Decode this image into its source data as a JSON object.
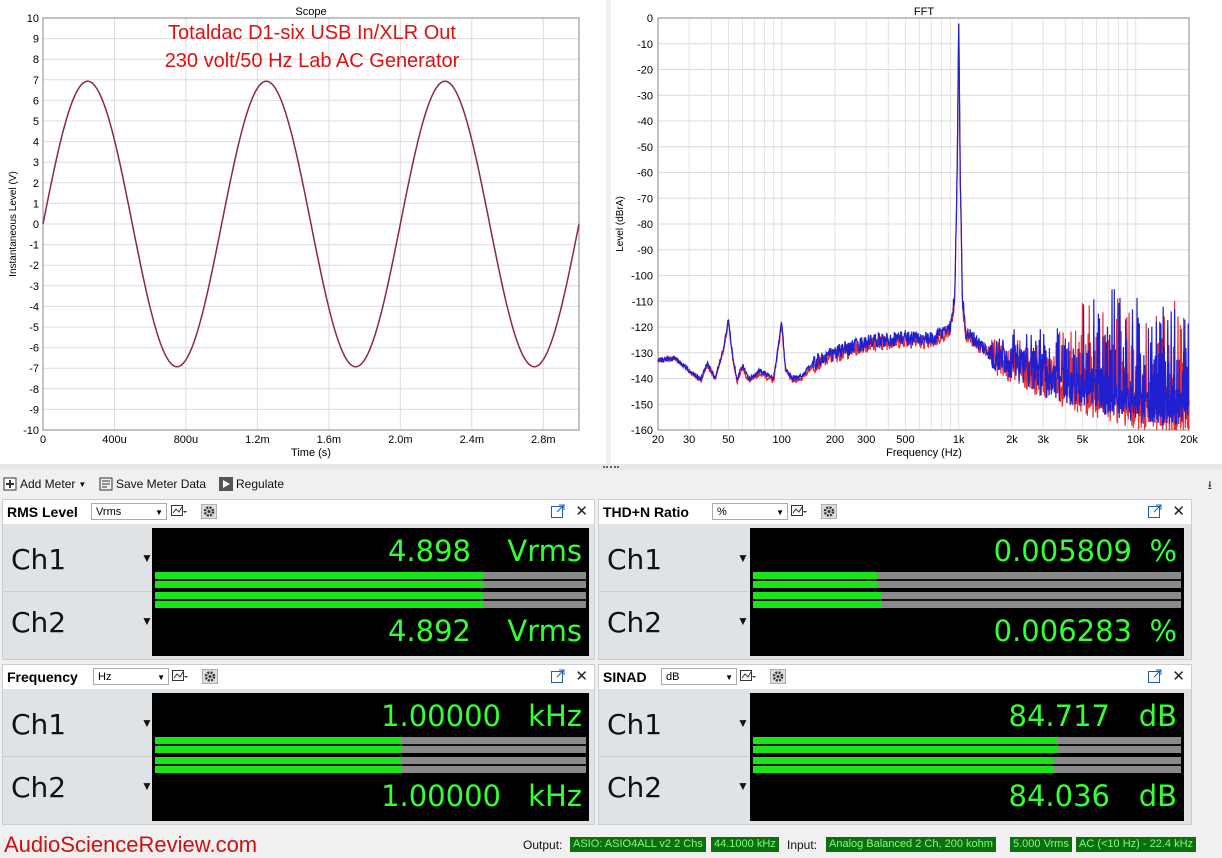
{
  "scope": {
    "title": "Scope",
    "annotation_line1": "Totaldac D1-six USB In/XLR Out",
    "annotation_line2": "230 volt/50 Hz Lab AC Generator",
    "xlabel": "Time (s)",
    "ylabel": "Instantaneous Level (V)",
    "yticks": [
      "10",
      "9",
      "8",
      "7",
      "6",
      "5",
      "4",
      "3",
      "2",
      "1",
      "0",
      "-1",
      "-2",
      "-3",
      "-4",
      "-5",
      "-6",
      "-7",
      "-8",
      "-9",
      "-10"
    ],
    "xticks": [
      "0",
      "400u",
      "800u",
      "1.2m",
      "1.6m",
      "2.0m",
      "2.4m",
      "2.8m"
    ]
  },
  "fft": {
    "title": "FFT",
    "xlabel": "Frequency (Hz)",
    "ylabel": "Level (dBrA)",
    "yticks": [
      "0",
      "-10",
      "-20",
      "-30",
      "-40",
      "-50",
      "-60",
      "-70",
      "-80",
      "-90",
      "-100",
      "-110",
      "-120",
      "-130",
      "-140",
      "-150",
      "-160"
    ],
    "xticks": [
      "20",
      "30",
      "50",
      "100",
      "200",
      "300",
      "500",
      "1k",
      "2k",
      "3k",
      "5k",
      "10k",
      "20k"
    ]
  },
  "chart_data": [
    {
      "type": "line",
      "title": "Scope",
      "xlabel": "Time (s)",
      "ylabel": "Instantaneous Level (V)",
      "xlim": [
        0,
        0.003
      ],
      "ylim": [
        -10,
        10
      ],
      "grid": true,
      "series": [
        {
          "waveform": "sine",
          "frequency_hz": 1000,
          "amplitude_v": 6.93,
          "phase_deg": 0,
          "color": "#8b2a3a"
        }
      ]
    },
    {
      "type": "line",
      "title": "FFT",
      "xlabel": "Frequency (Hz)",
      "ylabel": "Level (dBrA)",
      "xscale": "log",
      "xlim": [
        20,
        20000
      ],
      "ylim": [
        -160,
        0
      ],
      "grid": true,
      "series": [
        {
          "channel": "Ch1",
          "color": "#2020d0",
          "points": [
            [
              20,
              -133
            ],
            [
              25,
              -132
            ],
            [
              30,
              -137
            ],
            [
              35,
              -140
            ],
            [
              38,
              -134
            ],
            [
              42,
              -140
            ],
            [
              47,
              -128
            ],
            [
              50,
              -117
            ],
            [
              53,
              -132
            ],
            [
              56,
              -140
            ],
            [
              60,
              -135
            ],
            [
              65,
              -140
            ],
            [
              70,
              -139
            ],
            [
              75,
              -137
            ],
            [
              80,
              -138
            ],
            [
              90,
              -140
            ],
            [
              100,
              -118
            ],
            [
              105,
              -136
            ],
            [
              115,
              -140
            ],
            [
              130,
              -139
            ],
            [
              150,
              -134
            ],
            [
              200,
              -130
            ],
            [
              300,
              -126
            ],
            [
              500,
              -124
            ],
            [
              700,
              -125
            ],
            [
              900,
              -120
            ],
            [
              950,
              -108
            ],
            [
              980,
              -60
            ],
            [
              1000,
              0
            ],
            [
              1020,
              -60
            ],
            [
              1050,
              -110
            ],
            [
              1100,
              -122
            ],
            [
              1500,
              -130
            ],
            [
              2000,
              -133
            ],
            [
              3000,
              -140
            ],
            [
              5000,
              -145
            ],
            [
              10000,
              -150
            ],
            [
              15000,
              -152
            ],
            [
              20000,
              -152
            ]
          ]
        },
        {
          "channel": "Ch2",
          "color": "#e83030",
          "points": [
            [
              20,
              -133
            ],
            [
              25,
              -132
            ],
            [
              30,
              -137
            ],
            [
              35,
              -141
            ],
            [
              38,
              -135
            ],
            [
              42,
              -140
            ],
            [
              47,
              -129
            ],
            [
              50,
              -118
            ],
            [
              53,
              -133
            ],
            [
              56,
              -141
            ],
            [
              60,
              -136
            ],
            [
              65,
              -141
            ],
            [
              70,
              -140
            ],
            [
              75,
              -138
            ],
            [
              80,
              -139
            ],
            [
              90,
              -141
            ],
            [
              100,
              -119
            ],
            [
              105,
              -137
            ],
            [
              115,
              -141
            ],
            [
              130,
              -140
            ],
            [
              150,
              -135
            ],
            [
              200,
              -131
            ],
            [
              300,
              -127
            ],
            [
              500,
              -125
            ],
            [
              700,
              -126
            ],
            [
              900,
              -121
            ],
            [
              950,
              -109
            ],
            [
              980,
              -61
            ],
            [
              1000,
              0
            ],
            [
              1020,
              -61
            ],
            [
              1050,
              -111
            ],
            [
              1100,
              -123
            ],
            [
              1500,
              -131
            ],
            [
              2000,
              -135
            ],
            [
              3000,
              -141
            ],
            [
              5000,
              -147
            ],
            [
              10000,
              -153
            ],
            [
              15000,
              -155
            ],
            [
              20000,
              -155
            ]
          ]
        }
      ]
    }
  ],
  "toolbar": {
    "add_meter": "Add Meter",
    "save_meter_data": "Save Meter Data",
    "regulate": "Regulate"
  },
  "meters": {
    "rms": {
      "title": "RMS Level",
      "unit_select": "Vrms",
      "ch1_label": "Ch1",
      "ch2_label": "Ch2",
      "ch1_value": "4.898",
      "ch2_value": "4.892",
      "unit": "Vrms",
      "ch1_level": 0.76,
      "ch2_level": 0.76
    },
    "thdn": {
      "title": "THD+N Ratio",
      "unit_select": "%",
      "ch1_label": "Ch1",
      "ch2_label": "Ch2",
      "ch1_value": "0.005809",
      "ch2_value": "0.006283",
      "unit": "%",
      "ch1_level": 0.29,
      "ch2_level": 0.3
    },
    "freq": {
      "title": "Frequency",
      "unit_select": "Hz",
      "ch1_label": "Ch1",
      "ch2_label": "Ch2",
      "ch1_value": "1.00000",
      "ch2_value": "1.00000",
      "unit": "kHz",
      "ch1_level": 0.57,
      "ch2_level": 0.57
    },
    "sinad": {
      "title": "SINAD",
      "unit_select": "dB",
      "ch1_label": "Ch1",
      "ch2_label": "Ch2",
      "ch1_value": "84.717",
      "ch2_value": "84.036",
      "unit": "dB",
      "ch1_level": 0.71,
      "ch2_level": 0.7
    }
  },
  "status": {
    "watermark": "AudioScienceReview.com",
    "output_label": "Output:",
    "output_device": "ASIO: ASIO4ALL v2 2 Chs",
    "output_rate": "44.1000 kHz",
    "input_label": "Input:",
    "input_device": "Analog Balanced 2 Ch, 200 kohm",
    "input_range": "5.000 Vrms",
    "input_coupling": "AC (<10 Hz) - 22.4 kHz"
  },
  "colors": {
    "accent_green": "#33ff33",
    "bar_fill": "#19e619",
    "annotation_red": "#dd1111",
    "scope_trace": "#8b2a3a",
    "fft_ch1": "#2020d0",
    "fft_ch2": "#e83030"
  }
}
